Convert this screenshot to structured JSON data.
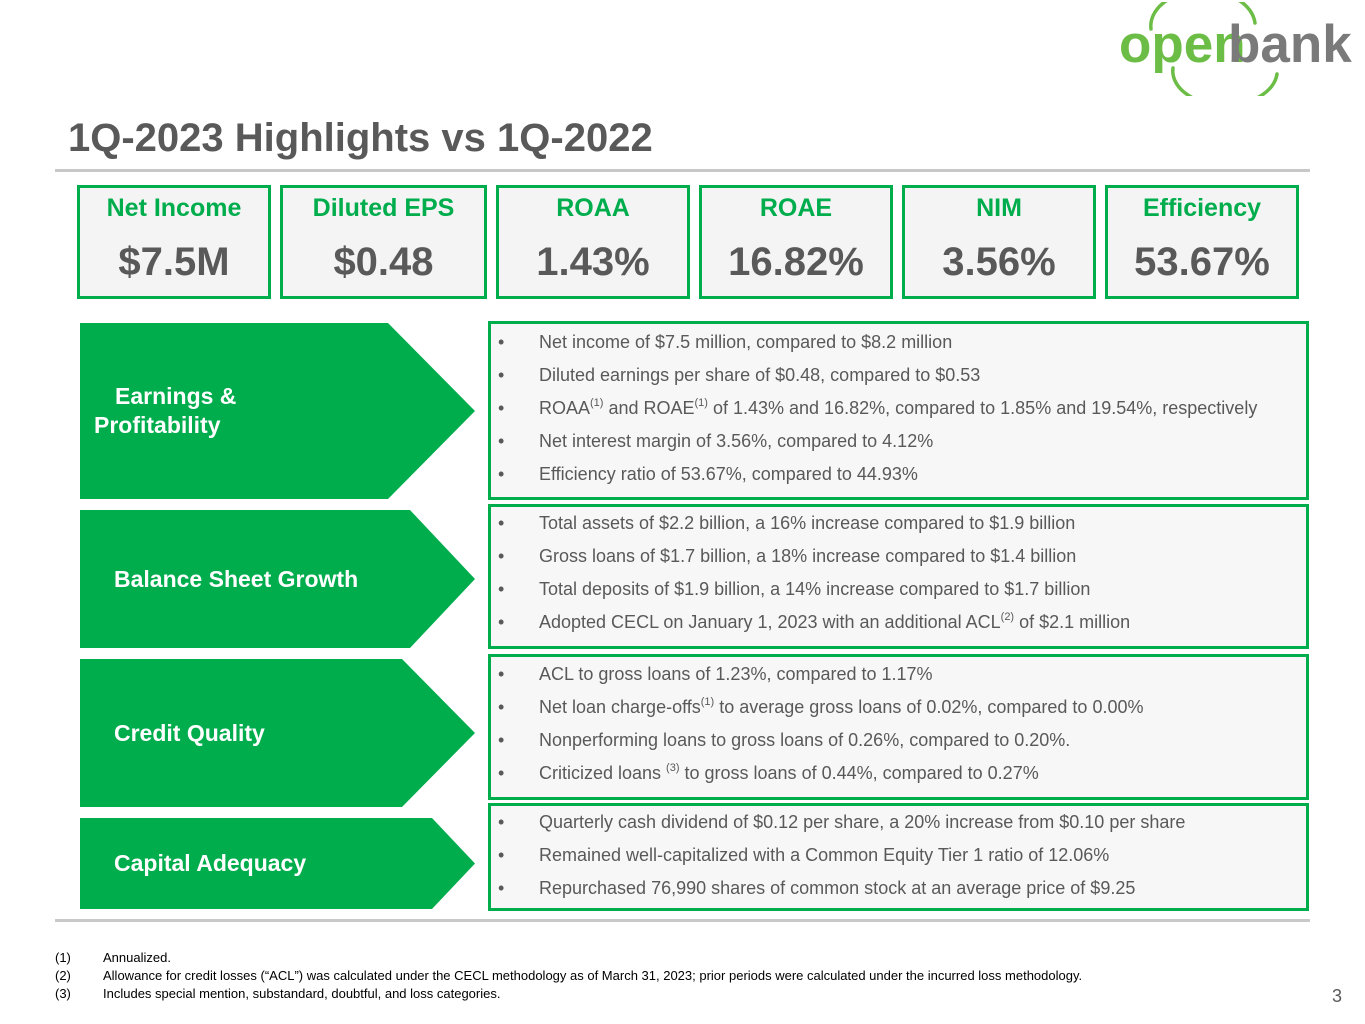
{
  "logo": {
    "part1": "open",
    "part2": "bank"
  },
  "title": "1Q-2023 Highlights vs 1Q-2022",
  "kpis": [
    {
      "label": "Net Income",
      "value": "$7.5M"
    },
    {
      "label": "Diluted EPS",
      "value": "$0.48"
    },
    {
      "label": "ROAA",
      "value": "1.43%"
    },
    {
      "label": "ROAE",
      "value": "16.82%"
    },
    {
      "label": "NIM",
      "value": "3.56%"
    },
    {
      "label": "Efficiency",
      "value": "53.67%"
    }
  ],
  "sections": [
    {
      "label_line1": "Earnings &",
      "label_line2": "Profitability",
      "bullets": [
        {
          "text": "Net income of $7.5 million, compared to $8.2 million"
        },
        {
          "text": "Diluted earnings per share of $0.48, compared to $0.53"
        },
        {
          "t1": "ROAA",
          "s1": "(1)",
          "t2": " and ROAE",
          "s2": "(1)",
          "t3": " of 1.43% and 16.82%, compared to 1.85% and 19.54%, respectively"
        },
        {
          "text": "Net interest margin of 3.56%, compared to 4.12%"
        },
        {
          "text": "Efficiency ratio of 53.67%, compared to 44.93%"
        }
      ]
    },
    {
      "label": "Balance Sheet Growth",
      "bullets": [
        {
          "text": "Total assets of $2.2 billion, a 16% increase compared to $1.9 billion"
        },
        {
          "text": "Gross loans of $1.7 billion, a 18% increase compared to $1.4 billion"
        },
        {
          "text": "Total deposits of $1.9 billion, a 14% increase compared to $1.7 billion"
        },
        {
          "t1": "Adopted CECL on January 1, 2023 with an additional ACL",
          "s1": "(2)",
          "t2": " of $2.1 million"
        }
      ]
    },
    {
      "label": "Credit Quality",
      "bullets": [
        {
          "text": "ACL to gross loans of 1.23%, compared to 1.17%"
        },
        {
          "t1": "Net loan charge-offs",
          "s1": "(1)",
          "t2": " to average gross loans of 0.02%, compared to 0.00%"
        },
        {
          "text": "Nonperforming loans to gross loans of 0.26%, compared to 0.20%."
        },
        {
          "t1": "Criticized loans ",
          "s1": "(3)",
          "t2": " to gross loans of 0.44%, compared to 0.27%"
        }
      ]
    },
    {
      "label": "Capital Adequacy",
      "bullets": [
        {
          "text": "Quarterly cash dividend of $0.12 per share, a 20% increase from $0.10 per share"
        },
        {
          "text": "Remained well-capitalized with a Common Equity Tier 1 ratio of 12.06%"
        },
        {
          "text": "Repurchased 76,990 shares of common stock at an average price of $9.25"
        }
      ]
    }
  ],
  "bullet_char": "•",
  "footnotes": [
    {
      "num": "(1)",
      "text": "Annualized."
    },
    {
      "num": "(2)",
      "text": "Allowance for credit losses (“ACL”) was calculated under the CECL methodology as of March 31, 2023; prior periods were calculated under the incurred loss methodology."
    },
    {
      "num": "(3)",
      "text": "Includes special mention, substandard, doubtful, and loss categories."
    }
  ],
  "page_number": "3",
  "colors": {
    "brand_green": "#00ad4d",
    "logo_green": "#6bbd45",
    "text_gray": "#595959"
  }
}
